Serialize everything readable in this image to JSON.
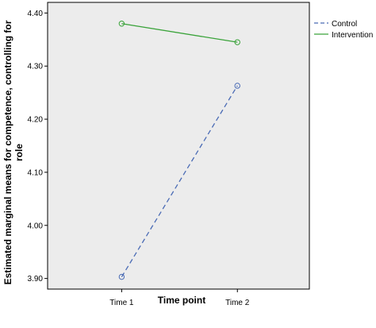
{
  "chart_data": {
    "type": "line",
    "title": "",
    "xlabel": "Time point",
    "ylabel_lines": [
      "Estimated marginal means for competence, controlling for",
      "role"
    ],
    "categories": [
      "Time 1",
      "Time 2"
    ],
    "ylim": [
      3.88,
      4.42
    ],
    "yticks": [
      "3.90",
      "4.00",
      "4.10",
      "4.20",
      "4.30",
      "4.40"
    ],
    "grid": false,
    "legend_position": "top-right",
    "series": [
      {
        "name": "Control",
        "values": [
          3.903,
          4.263
        ],
        "color": "#4a6bb5",
        "dash": "dashed",
        "marker": "open-circle"
      },
      {
        "name": "Intervention",
        "values": [
          4.38,
          4.345
        ],
        "color": "#3aa33a",
        "dash": "solid",
        "marker": "open-circle"
      }
    ],
    "plot_background": "#ececec"
  }
}
